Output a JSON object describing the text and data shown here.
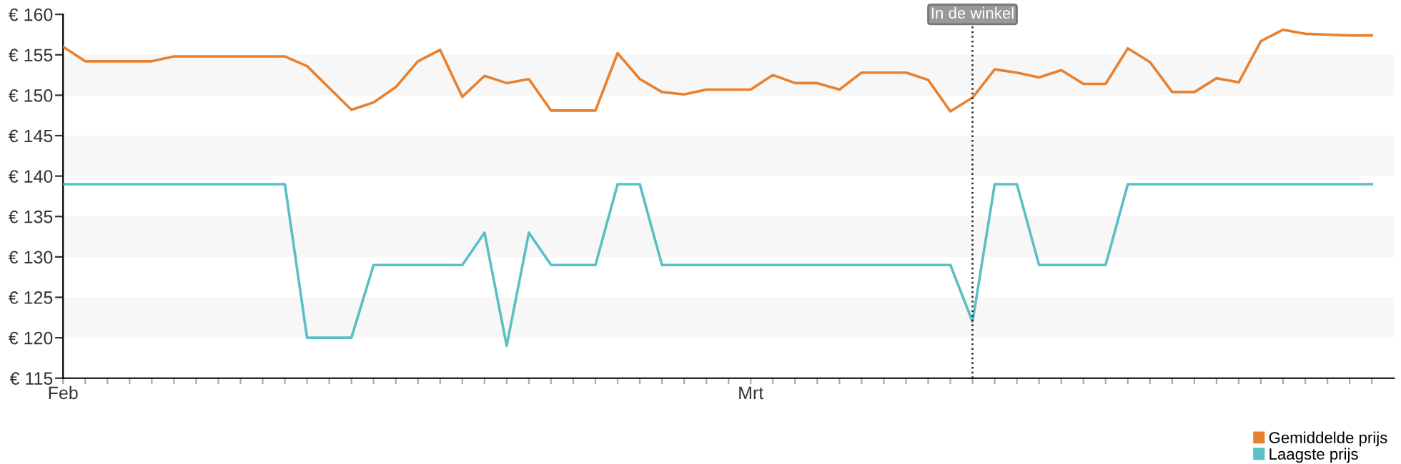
{
  "chart_data": {
    "type": "line",
    "categories": [
      "Feb",
      null,
      null,
      null,
      null,
      null,
      null,
      null,
      null,
      null,
      null,
      null,
      null,
      null,
      null,
      null,
      null,
      null,
      null,
      null,
      null,
      null,
      null,
      null,
      null,
      null,
      null,
      null,
      null,
      null,
      null,
      "Mrt",
      null,
      null,
      null,
      null,
      null,
      null,
      null,
      null,
      null,
      null,
      null,
      null,
      null,
      null,
      null,
      null,
      null,
      null,
      null,
      null,
      null,
      null,
      null,
      null,
      null,
      null,
      null,
      null
    ],
    "series": [
      {
        "name": "Gemiddelde prijs",
        "color": "#e8812f",
        "values": [
          156.0,
          154.2,
          154.2,
          154.2,
          154.2,
          154.8,
          154.8,
          154.8,
          154.8,
          154.8,
          154.8,
          153.6,
          150.9,
          148.2,
          149.1,
          151.0,
          154.2,
          155.6,
          149.8,
          152.4,
          151.5,
          152.0,
          148.1,
          148.1,
          148.1,
          155.2,
          152.0,
          150.4,
          150.1,
          150.7,
          150.7,
          150.7,
          152.5,
          151.5,
          151.5,
          150.7,
          152.8,
          152.8,
          152.8,
          151.9,
          148.0,
          149.7,
          153.2,
          152.8,
          152.2,
          153.1,
          151.4,
          151.4,
          155.8,
          154.1,
          150.4,
          150.4,
          152.1,
          151.6,
          156.7,
          158.1,
          157.6,
          157.5,
          157.4,
          157.4
        ]
      },
      {
        "name": "Laagste prijs",
        "color": "#5bbfc6",
        "values": [
          139,
          139,
          139,
          139,
          139,
          139,
          139,
          139,
          139,
          139,
          139,
          120,
          120,
          120,
          129,
          129,
          129,
          129,
          129,
          133,
          119,
          133,
          129,
          129,
          129,
          139,
          139,
          129,
          129,
          129,
          129,
          129,
          129,
          129,
          129,
          129,
          129,
          129,
          129,
          129,
          129,
          122,
          139,
          139,
          129,
          129,
          129,
          129,
          139,
          139,
          139,
          139,
          139,
          139,
          139,
          139,
          139,
          139,
          139,
          139
        ]
      }
    ],
    "ylim": [
      115,
      160
    ],
    "yticks": [
      {
        "value": 115,
        "label": "€ 115"
      },
      {
        "value": 120,
        "label": "€ 120"
      },
      {
        "value": 125,
        "label": "€ 125"
      },
      {
        "value": 130,
        "label": "€ 130"
      },
      {
        "value": 135,
        "label": "€ 135"
      },
      {
        "value": 140,
        "label": "€ 140"
      },
      {
        "value": 145,
        "label": "€ 145"
      },
      {
        "value": 150,
        "label": "€ 150"
      },
      {
        "value": 155,
        "label": "€ 155"
      },
      {
        "value": 160,
        "label": "€ 160"
      }
    ],
    "bands": [
      {
        "axis": "y",
        "from": 120,
        "to": 125,
        "color": "#f7f7f7"
      },
      {
        "axis": "y",
        "from": 130,
        "to": 135,
        "color": "#f7f7f7"
      },
      {
        "axis": "y",
        "from": 140,
        "to": 145,
        "color": "#f7f7f7"
      },
      {
        "axis": "y",
        "from": 150,
        "to": 155,
        "color": "#f7f7f7"
      }
    ],
    "annotations": [
      "In de winkel"
    ],
    "legend": "bottom right",
    "marker": "none",
    "line_style": "solid"
  }
}
